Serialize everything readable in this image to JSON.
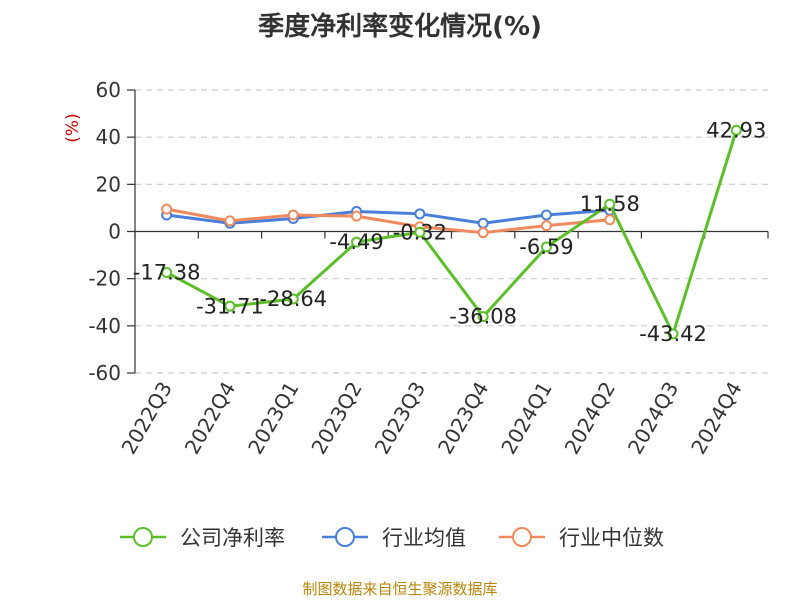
{
  "chart_data": {
    "type": "line",
    "title": "季度净利率变化情况(%)",
    "ylabel": "(%)",
    "xlabel": "",
    "ylim": [
      -60,
      60
    ],
    "yticks": [
      60,
      40,
      20,
      0,
      -20,
      -40,
      -60
    ],
    "categories": [
      "2022Q3",
      "2022Q4",
      "2023Q1",
      "2023Q2",
      "2023Q3",
      "2023Q4",
      "2024Q1",
      "2024Q2",
      "2024Q3",
      "2024Q4"
    ],
    "series": [
      {
        "name": "公司净利率",
        "color": "#5cbf2a",
        "values": [
          -17.38,
          -31.71,
          -28.64,
          -4.49,
          -0.32,
          -36.08,
          -6.59,
          11.58,
          -43.42,
          42.93
        ],
        "labels": [
          "-17.38",
          "-31.71",
          "-28.64",
          "-4.49",
          "-0.32",
          "-36.08",
          "-6.59",
          "11.58",
          "-43.42",
          "42.93"
        ]
      },
      {
        "name": "行业均值",
        "color": "#4a7fd9",
        "values": [
          7,
          3.5,
          5.5,
          8.5,
          7.5,
          3.5,
          7,
          9,
          null,
          null
        ]
      },
      {
        "name": "行业中位数",
        "color": "#f08a5d",
        "values": [
          9.5,
          4.5,
          7,
          6.5,
          2,
          -0.5,
          2.5,
          5,
          null,
          null
        ]
      }
    ],
    "grid": true,
    "legend_position": "bottom"
  },
  "footer": {
    "source": "制图数据来自恒生聚源数据库"
  }
}
